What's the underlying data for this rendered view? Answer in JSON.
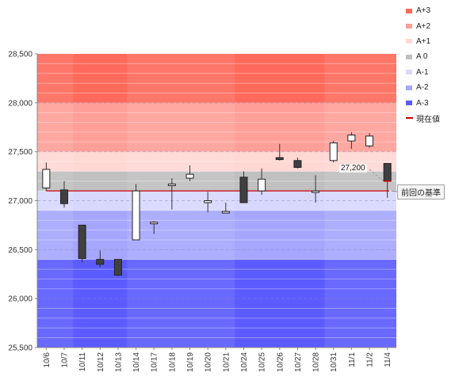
{
  "chart_data": {
    "type": "candlestick",
    "title": "",
    "xlabel": "",
    "ylabel": "",
    "ylim": [
      25500,
      28500
    ],
    "yticks": [
      25500,
      26000,
      26500,
      27000,
      27500,
      28000,
      28500
    ],
    "ytick_labels": [
      "25,500",
      "26,000",
      "26,500",
      "27,000",
      "27,500",
      "28,000",
      "28,500"
    ],
    "categories": [
      "10/6",
      "10/7",
      "10/11",
      "10/12",
      "10/13",
      "10/14",
      "10/17",
      "10/18",
      "10/19",
      "10/20",
      "10/21",
      "10/24",
      "10/25",
      "10/26",
      "10/27",
      "10/28",
      "10/31",
      "11/1",
      "11/2",
      "11/4"
    ],
    "series": [
      {
        "ohlc": [
          {
            "o": 27130,
            "h": 27390,
            "l": 27100,
            "c": 27320
          },
          {
            "o": 27110,
            "h": 27200,
            "l": 26930,
            "c": 26970
          },
          {
            "o": 26750,
            "h": 26750,
            "l": 26370,
            "c": 26410
          },
          {
            "o": 26400,
            "h": 26490,
            "l": 26320,
            "c": 26350
          },
          {
            "o": 26400,
            "h": 26400,
            "l": 26230,
            "c": 26240
          },
          {
            "o": 26600,
            "h": 27170,
            "l": 26600,
            "c": 27100
          },
          {
            "o": 26780,
            "h": 26790,
            "l": 26660,
            "c": 26780
          },
          {
            "o": 27160,
            "h": 27230,
            "l": 26910,
            "c": 27170
          },
          {
            "o": 27230,
            "h": 27360,
            "l": 27200,
            "c": 27270
          },
          {
            "o": 26980,
            "h": 27090,
            "l": 26880,
            "c": 27000
          },
          {
            "o": 26890,
            "h": 26980,
            "l": 26880,
            "c": 26890
          },
          {
            "o": 27240,
            "h": 27300,
            "l": 26980,
            "c": 26980
          },
          {
            "o": 27100,
            "h": 27330,
            "l": 27060,
            "c": 27220
          },
          {
            "o": 27440,
            "h": 27580,
            "l": 27410,
            "c": 27420
          },
          {
            "o": 27410,
            "h": 27440,
            "l": 27330,
            "c": 27340
          },
          {
            "o": 27100,
            "h": 27260,
            "l": 26980,
            "c": 27100
          },
          {
            "o": 27410,
            "h": 27610,
            "l": 27390,
            "c": 27590
          },
          {
            "o": 27610,
            "h": 27700,
            "l": 27530,
            "c": 27670
          },
          {
            "o": 27560,
            "h": 27690,
            "l": 27540,
            "c": 27660
          },
          {
            "o": 27380,
            "h": 27380,
            "l": 27030,
            "c": 27200
          }
        ]
      }
    ],
    "bands": [
      {
        "name": "A+3",
        "from": 28000,
        "to": 28500,
        "color": "#ff6a5a"
      },
      {
        "name": "A+2",
        "from": 27500,
        "to": 28000,
        "color": "#ff9f98"
      },
      {
        "name": "A+1",
        "from": 27300,
        "to": 27500,
        "color": "#ffd8d3"
      },
      {
        "name": "A 0",
        "from": 27100,
        "to": 27300,
        "color": "#c0c0c0"
      },
      {
        "name": "A-1",
        "from": 26900,
        "to": 27100,
        "color": "#d8d8ff"
      },
      {
        "name": "A-2",
        "from": 26400,
        "to": 26900,
        "color": "#a6a6ff"
      },
      {
        "name": "A-3",
        "from": 25500,
        "to": 26400,
        "color": "#5b5bff"
      }
    ],
    "reference_line": {
      "value": 27100,
      "color": "#cc0000"
    },
    "current_value": {
      "value": 27200,
      "label": "27,200"
    },
    "annotation": "前回の基準",
    "legend": [
      {
        "label": "A+3",
        "color": "#ff6a5a",
        "kind": "box"
      },
      {
        "label": "A+2",
        "color": "#ff9f98",
        "kind": "box"
      },
      {
        "label": "A+1",
        "color": "#ffd8d3",
        "kind": "box"
      },
      {
        "label": "A 0",
        "color": "#c0c0c0",
        "kind": "box"
      },
      {
        "label": "A-1",
        "color": "#d8d8ff",
        "kind": "box"
      },
      {
        "label": "A-2",
        "color": "#a6a6ff",
        "kind": "box"
      },
      {
        "label": "A-3",
        "color": "#5b5bff",
        "kind": "box"
      },
      {
        "label": "現在値",
        "color": "#cc0000",
        "kind": "line"
      }
    ],
    "legend_position": "right",
    "grid": true,
    "colors": {
      "up": "#ffffff",
      "down": "#404040",
      "wick": "#333333"
    }
  }
}
